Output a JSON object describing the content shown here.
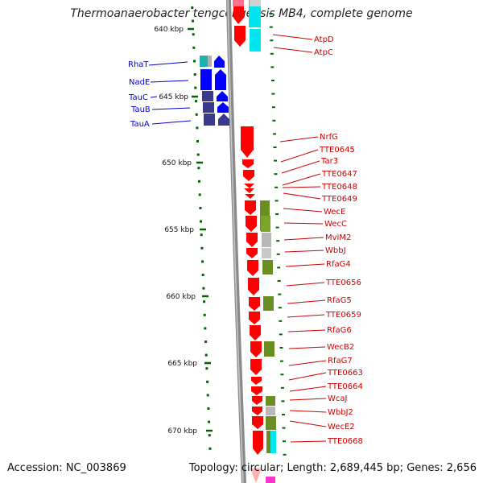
{
  "title": "Thermoanaerobacter tengcongensis MB4, complete genome",
  "accession": "Accession: NC_003869",
  "topology": "Topology: circular",
  "length": "Length: 2,689,445 bp",
  "genes_count": "Genes: 2,656",
  "ticks": [
    "640 kbp",
    "645 kbp",
    "650 kbp",
    "655 kbp",
    "660 kbp",
    "665 kbp",
    "670 kbp"
  ],
  "left_labels": [
    "RhaT",
    "NadE",
    "TauC",
    "TauB",
    "TauA"
  ],
  "right_labels": [
    "AtpD",
    "AtpC",
    "NrfG",
    "TTE0645",
    "Tar3",
    "TTE0647",
    "TTE0648",
    "TTE0649",
    "WecE",
    "WecC",
    "MviM2",
    "WbbJ",
    "RfaG4",
    "TTE0656",
    "RfaG5",
    "TTE0659",
    "RfaG6",
    "WecB2",
    "RfaG7",
    "TTE0663",
    "TTE0664",
    "WcaJ",
    "WbbJ2",
    "WecE2",
    "TTE0668"
  ],
  "colors": {
    "forward_gene": "#ff0000",
    "reverse_gene": "#0000ff",
    "reverse_gene_dark": "#3a3a8c",
    "cog_green": "#6b8e23",
    "cog_cyan": "#00e5ee",
    "cog_gray": "#b0b0b0",
    "pink": "#ff69b4",
    "backbone": "#808080",
    "tick_green": "#006400",
    "left_label": "#0000cc",
    "right_label": "#cc0000"
  }
}
